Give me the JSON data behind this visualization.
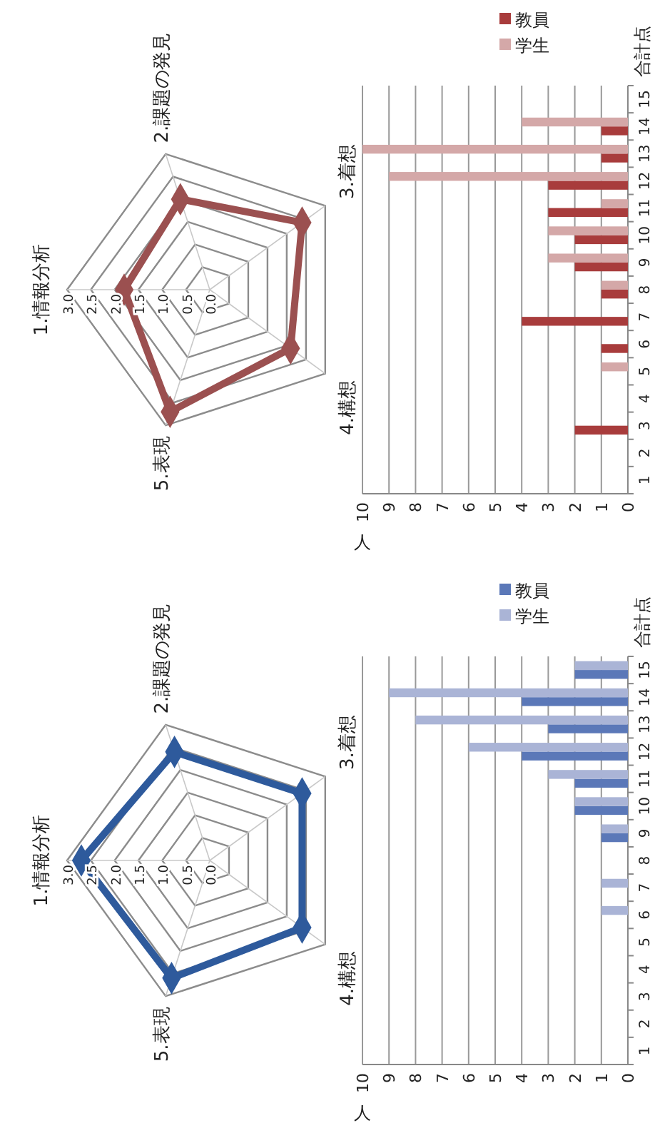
{
  "chart_data": [
    {
      "type": "radar",
      "categories": [
        "1.情報分析",
        "2.課題の発見",
        "3.着想",
        "4.構想",
        "5.表現"
      ],
      "ylim": [
        0,
        3
      ],
      "yticks": [
        {
          "value": 0,
          "label": "0.0"
        },
        0.5,
        {
          "value": 1,
          "label": "1.0"
        },
        1.5,
        {
          "value": 2,
          "label": "2.0"
        },
        2.5,
        {
          "value": 3,
          "label": "3.0"
        }
      ],
      "grid": true,
      "marker": "diamond",
      "series": [
        {
          "color": "#9b5050",
          "values": [
            1.8,
            2.0,
            2.4,
            2.1,
            2.7
          ]
        }
      ]
    },
    {
      "type": "bar",
      "orientation": "horizontal",
      "xlabel": "人",
      "ylabel": "合計点",
      "categories": [
        "15",
        "14",
        "13",
        "12",
        "11",
        "10",
        "9",
        "8",
        "7",
        "6",
        "5",
        "4",
        "3",
        "2",
        "1"
      ],
      "xlim": [
        10,
        0
      ],
      "xticks": [
        0,
        1,
        2,
        3,
        4,
        5,
        6,
        7,
        8,
        9,
        10
      ],
      "grid": "x",
      "legend": "top right",
      "series": [
        {
          "name": "教員",
          "color": "#a83c3c",
          "values": [
            0,
            1,
            1,
            3,
            3,
            2,
            2,
            1,
            4,
            1,
            0,
            0,
            2,
            0,
            0
          ]
        },
        {
          "name": "学生",
          "color": "#d4a8a8",
          "values": [
            0,
            4,
            10,
            9,
            1,
            3,
            3,
            1,
            0,
            0,
            1,
            0,
            0,
            0,
            0
          ]
        }
      ]
    },
    {
      "type": "radar",
      "categories": [
        "1.情報分析",
        "2.課題の発見",
        "3.着想",
        "4.構想",
        "5.表現"
      ],
      "ylim": [
        0,
        3
      ],
      "yticks": [
        {
          "value": 0,
          "label": "0.0"
        },
        0.5,
        {
          "value": 1,
          "label": "1.0"
        },
        1.5,
        {
          "value": 2,
          "label": "2.0"
        },
        2.5,
        {
          "value": 3,
          "label": "3.0"
        }
      ],
      "grid": true,
      "marker": "diamond",
      "series": [
        {
          "color": "#2e5a9c",
          "values": [
            2.7,
            2.4,
            2.4,
            2.4,
            2.6
          ]
        }
      ]
    },
    {
      "type": "bar",
      "orientation": "horizontal",
      "xlabel": "人",
      "ylabel": "合計点",
      "categories": [
        "15",
        "14",
        "13",
        "12",
        "11",
        "10",
        "9",
        "8",
        "7",
        "6",
        "5",
        "4",
        "3",
        "2",
        "1"
      ],
      "xlim": [
        10,
        0
      ],
      "xticks": [
        0,
        1,
        2,
        3,
        4,
        5,
        6,
        7,
        8,
        9,
        10
      ],
      "grid": "x",
      "legend": "top right",
      "series": [
        {
          "name": "教員",
          "color": "#5b78b8",
          "values": [
            2,
            4,
            3,
            4,
            2,
            2,
            1,
            0,
            0,
            0,
            0,
            0,
            0,
            0,
            0
          ]
        },
        {
          "name": "学生",
          "color": "#aab4d6",
          "values": [
            2,
            9,
            8,
            6,
            3,
            2,
            1,
            0,
            1,
            1,
            0,
            0,
            0,
            0,
            0
          ]
        }
      ]
    }
  ]
}
